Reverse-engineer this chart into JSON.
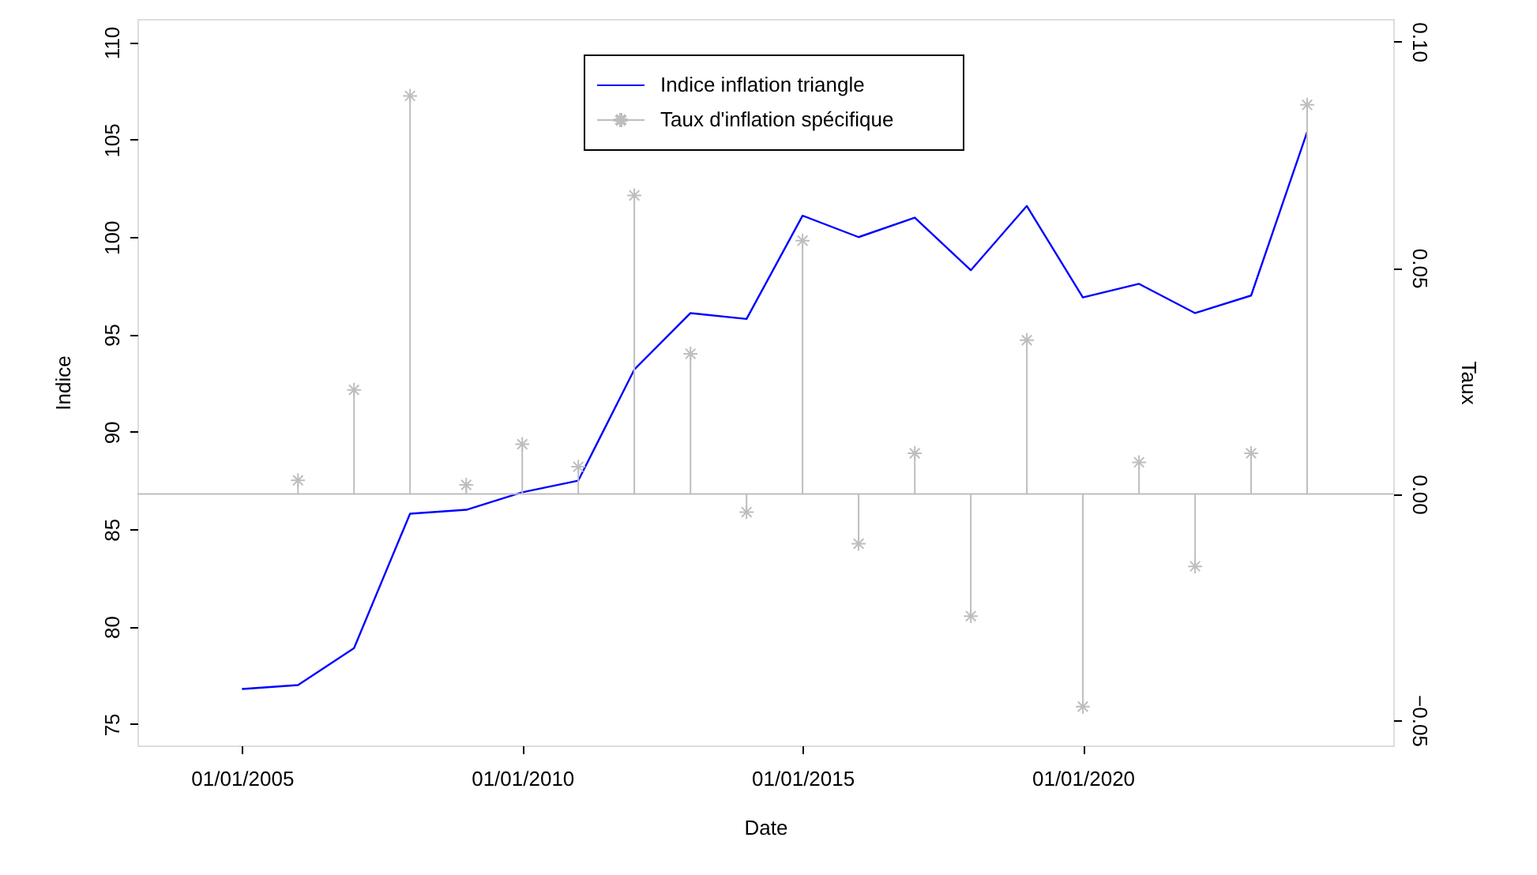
{
  "chart_data": {
    "type": "line",
    "xlabel": "Date",
    "ylabel": "Indice",
    "y2label": "Taux",
    "x": [
      "2005-01-01",
      "2006-01-01",
      "2007-01-01",
      "2008-01-01",
      "2009-01-01",
      "2010-01-01",
      "2011-01-01",
      "2012-01-01",
      "2013-01-01",
      "2014-01-01",
      "2015-01-01",
      "2016-01-01",
      "2017-01-01",
      "2018-01-01",
      "2019-01-01",
      "2020-01-01",
      "2021-01-01",
      "2022-01-01",
      "2023-01-01",
      "2024-01-01"
    ],
    "series": [
      {
        "name": "Indice inflation triangle",
        "color": "#0000ff",
        "marker": "none",
        "line_style": "solid",
        "values": [
          76.8,
          77.0,
          78.9,
          85.8,
          86.0,
          86.9,
          87.5,
          93.2,
          96.1,
          95.8,
          101.1,
          100.0,
          101.0,
          98.3,
          101.6,
          96.9,
          97.6,
          96.1,
          97.0,
          105.4
        ]
      },
      {
        "name": "Taux d'inflation spécifique",
        "type": "lollipop",
        "axis": "y2",
        "color": "#bebebe",
        "marker": "cross",
        "values": [
          null,
          0.003,
          0.023,
          0.088,
          0.002,
          0.011,
          0.006,
          0.066,
          0.031,
          -0.004,
          0.056,
          -0.011,
          0.009,
          -0.027,
          0.034,
          -0.047,
          0.007,
          -0.016,
          0.009,
          0.086
        ]
      }
    ],
    "xlim": [
      "2003-02-20",
      "2025-07-15"
    ],
    "xticks": [
      {
        "value": "2005-01-01",
        "label": "01/01/2005"
      },
      {
        "value": "2010-01-01",
        "label": "01/01/2010"
      },
      {
        "value": "2015-01-01",
        "label": "01/01/2015"
      },
      {
        "value": "2020-01-01",
        "label": "01/01/2020"
      }
    ],
    "ylim": [
      73.9,
      111.2
    ],
    "yticks": [
      75,
      80,
      85,
      90,
      95,
      100,
      105,
      110
    ],
    "y2lim": [
      -0.0556,
      0.105
    ],
    "y2ticks": [
      {
        "value": -0.05,
        "label": "−0.05"
      },
      {
        "value": 0,
        "label": "0.00"
      },
      {
        "value": 0.05,
        "label": "0.05"
      },
      {
        "value": 0.1,
        "label": "0.10"
      }
    ],
    "ref_lines": [
      {
        "axis": "y2",
        "value": 0,
        "color": "#bebebe",
        "line_style": "solid"
      }
    ],
    "grid": false,
    "legend": "top"
  }
}
